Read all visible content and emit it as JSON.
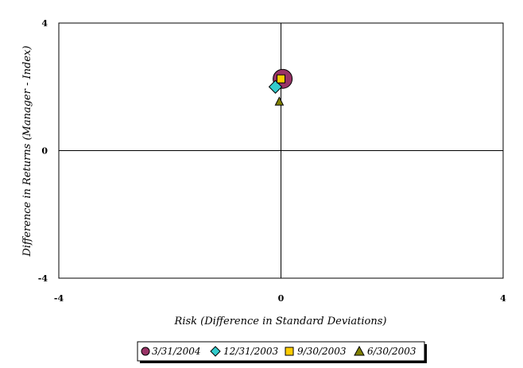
{
  "chart_data": {
    "type": "scatter",
    "title": "",
    "xlabel": "Risk (Difference in Standard Deviations)",
    "ylabel": "Difference in Returns (Manager - Index)",
    "xlim": [
      -4,
      4
    ],
    "ylim": [
      -4,
      4
    ],
    "x_ticks": [
      "-4",
      "0",
      "4"
    ],
    "y_ticks": [
      "4",
      "0",
      "-4"
    ],
    "grid": false,
    "zero_lines": true,
    "legend_placement": "bottom-center",
    "series": [
      {
        "name": "3/31/2004",
        "marker": "circle",
        "color": "#993366",
        "x": [
          0.03
        ],
        "y": [
          2.25
        ]
      },
      {
        "name": "12/31/2003",
        "marker": "diamond",
        "color": "#33CCCC",
        "x": [
          -0.1
        ],
        "y": [
          2.0
        ]
      },
      {
        "name": "9/30/2003",
        "marker": "square",
        "color": "#FFCC00",
        "x": [
          0.0
        ],
        "y": [
          2.25
        ]
      },
      {
        "name": "6/30/2003",
        "marker": "triangle",
        "color": "#808000",
        "x": [
          -0.03
        ],
        "y": [
          1.55
        ]
      }
    ]
  }
}
